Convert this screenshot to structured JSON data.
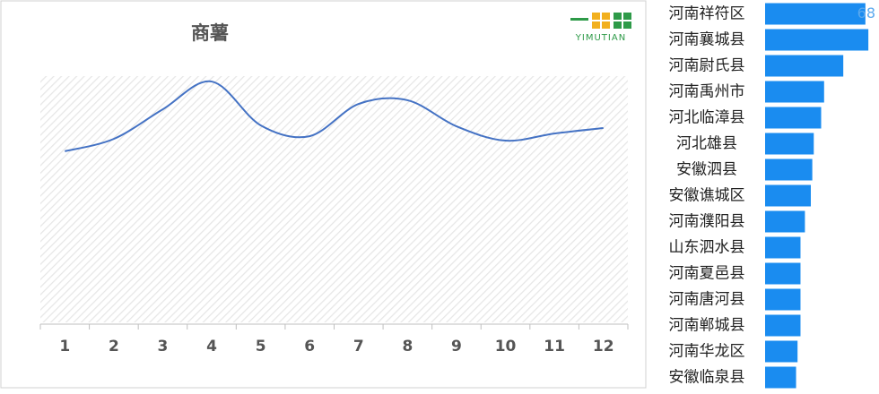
{
  "logo": "YIMUTIAN",
  "chart_data": [
    {
      "type": "line",
      "title": "商薯",
      "categories": [
        "1",
        "2",
        "3",
        "4",
        "5",
        "6",
        "7",
        "8",
        "9",
        "10",
        "11",
        "12"
      ],
      "series": [
        {
          "color": "#4472c4",
          "values": [
            69.5,
            74.5,
            86.5,
            97.8,
            80,
            75.6,
            88.7,
            90.2,
            79.6,
            73.8,
            76.7,
            78.9
          ]
        }
      ],
      "ylim": [
        0,
        100
      ],
      "smooth": true
    },
    {
      "type": "hbar",
      "color": "#1a8cf0",
      "categories": [
        "河南祥符区",
        "河南襄城县",
        "河南尉氏县",
        "河南禹州市",
        "河北临漳县",
        "河北雄县",
        "安徽泗县",
        "安徽谯城区",
        "河南濮阳县",
        "山东泗水县",
        "河南夏邑县",
        "河南唐河县",
        "河南郸城县",
        "河南华龙区",
        "安徽临泉县"
      ],
      "values": [
        68,
        70,
        53,
        40,
        38,
        33,
        32,
        31,
        27,
        24,
        24,
        24,
        24,
        22,
        21
      ],
      "xlim": [
        0,
        76
      ],
      "labeled": [
        0
      ]
    }
  ]
}
